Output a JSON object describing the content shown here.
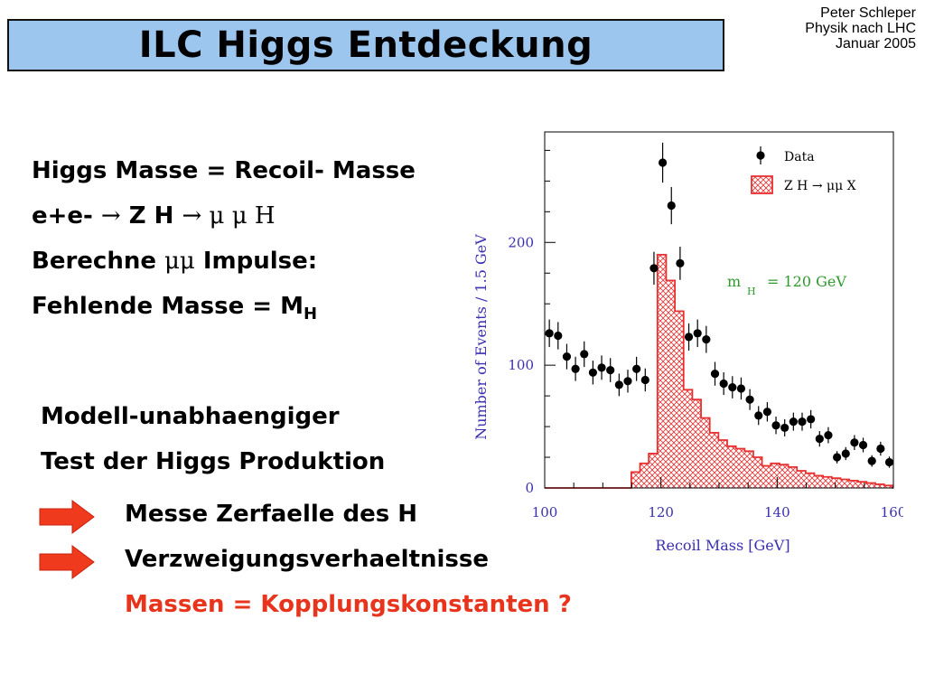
{
  "header": {
    "title": "ILC Higgs Entdeckung",
    "author": [
      "Peter Schleper",
      "Physik nach LHC",
      "Januar 2005"
    ]
  },
  "left": {
    "line1": "Higgs Masse = Recoil- Masse",
    "line2_pre": "e+e- ",
    "line2_a": "→",
    "line2_b": " Z H ",
    "line2_c": "→",
    "line2_d": " μ μ H",
    "line3_pre": "Berechne ",
    "line3_sym": "μμ",
    "line3_post": " Impulse:",
    "line4": "Fehlende Masse = M",
    "line4_sub": "H"
  },
  "block2": [
    "Modell-unabhaengiger",
    "Test der Higgs Produktion"
  ],
  "bullets": {
    "item1": "Messe Zerfaelle des H",
    "item2": "Verzweigungsverhaeltnisse",
    "item3": "Massen = Kopplungskonstanten ?"
  },
  "colors": {
    "title_bg": "#9cc6ee",
    "arrow": "#f03a1e",
    "highlight": "#e8341c",
    "chart_text": "#3a2fb0",
    "annotation": "#2e9a2e",
    "histogram": "#e83030"
  },
  "chart_data": {
    "type": "bar",
    "xlabel": "Recoil Mass  [GeV]",
    "ylabel": "Number of Events / 1.5 GeV",
    "xlim": [
      100,
      160
    ],
    "ylim": [
      0,
      290
    ],
    "xticks": [
      100,
      120,
      140,
      160
    ],
    "yticks": [
      0,
      100,
      200
    ],
    "annotation": {
      "label": "m",
      "sub": "H",
      "text": "=  120  GeV"
    },
    "legend": {
      "placement": "top-right",
      "entries": [
        "Data",
        "Z H → μμ X"
      ]
    },
    "data": {
      "name": "Data",
      "x": [
        100.8,
        102.3,
        103.8,
        105.3,
        106.8,
        108.3,
        109.8,
        111.3,
        112.8,
        114.3,
        115.8,
        117.3,
        118.8,
        120.3,
        121.8,
        123.3,
        124.8,
        126.3,
        127.8,
        129.3,
        130.8,
        132.3,
        133.8,
        135.3,
        136.8,
        138.3,
        139.8,
        141.3,
        142.8,
        144.3,
        145.8,
        147.3,
        148.8,
        150.3,
        151.8,
        153.3,
        154.8,
        156.3,
        157.8,
        159.3
      ],
      "y": [
        126,
        124,
        107,
        97,
        109,
        94,
        98,
        96,
        84,
        87,
        97,
        88,
        179,
        265,
        230,
        183,
        123,
        126,
        121,
        93,
        85,
        82,
        81,
        72,
        59,
        62,
        51,
        49,
        54,
        54,
        56,
        40,
        43,
        25,
        28,
        37,
        35,
        22,
        32,
        21
      ]
    },
    "signal": {
      "name": "Z H → μμ X",
      "edges": [
        114.9,
        116.4,
        117.9,
        119.4,
        120.9,
        122.4,
        123.9,
        125.4,
        126.9,
        128.4,
        129.9,
        131.4,
        132.9,
        134.4,
        135.9,
        137.4,
        138.9,
        140.4,
        141.9,
        143.4,
        144.9,
        146.4,
        147.9,
        149.4,
        150.9,
        152.4,
        153.9,
        155.4,
        156.9,
        158.4,
        159.9
      ],
      "values": [
        13,
        20,
        28,
        190,
        169,
        144,
        80,
        72,
        57,
        45,
        39,
        34,
        32,
        30,
        25,
        18,
        20,
        19,
        17,
        14,
        12,
        10,
        9,
        8,
        7,
        6,
        5,
        4,
        3,
        2
      ]
    }
  }
}
